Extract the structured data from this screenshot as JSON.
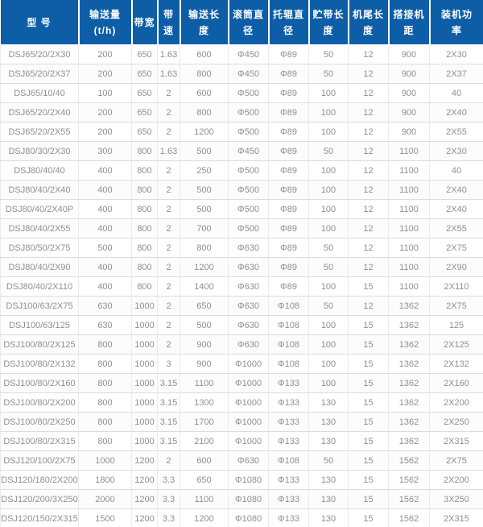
{
  "table": {
    "columns": [
      {
        "key": "model",
        "lines": [
          "型 号"
        ]
      },
      {
        "key": "capacity",
        "lines": [
          "输送量",
          "(t/h)"
        ]
      },
      {
        "key": "belt-width",
        "lines": [
          "带宽"
        ]
      },
      {
        "key": "belt-speed",
        "lines": [
          "带",
          "速"
        ]
      },
      {
        "key": "convey-length",
        "lines": [
          "输送长",
          "度"
        ]
      },
      {
        "key": "drum-diameter",
        "lines": [
          "滚筒直",
          "径"
        ]
      },
      {
        "key": "idler-diameter",
        "lines": [
          "托辊直",
          "径"
        ]
      },
      {
        "key": "storage-length",
        "lines": [
          "贮带长",
          "度"
        ]
      },
      {
        "key": "tail-length",
        "lines": [
          "机尾长",
          "度"
        ]
      },
      {
        "key": "overlap-distance",
        "lines": [
          "搭接机",
          "距"
        ]
      },
      {
        "key": "power",
        "lines": [
          "装机功",
          "率"
        ]
      }
    ],
    "rows": [
      {
        "cells": [
          "DSJ65/20/2X30",
          "200",
          "650",
          "1.63",
          "600",
          "Φ450",
          "Φ89",
          "50",
          "12",
          "900",
          "2X30"
        ]
      },
      {
        "cells": [
          "DSJ65/20/2X37",
          "200",
          "650",
          "1.63",
          "800",
          "Φ450",
          "Φ89",
          "50",
          "12",
          "900",
          "2X37"
        ]
      },
      {
        "cells": [
          "DSJ65/10/40",
          "100",
          "650",
          "2",
          "600",
          "Φ500",
          "Φ89",
          "100",
          "12",
          "900",
          "40"
        ]
      },
      {
        "cells": [
          "DSJ65/20/2X40",
          "200",
          "650",
          "2",
          "800",
          "Φ500",
          "Φ89",
          "100",
          "12",
          "900",
          "2X40"
        ]
      },
      {
        "cells": [
          "DSJ65/20/2X55",
          "200",
          "650",
          "2",
          "1200",
          "Φ500",
          "Φ89",
          "100",
          "12",
          "900",
          "2X55"
        ]
      },
      {
        "cells": [
          "DSJ80/30/2X30",
          "300",
          "800",
          "1.63",
          "500",
          "Φ450",
          "Φ89",
          "50",
          "12",
          "1100",
          "2X30"
        ]
      },
      {
        "cells": [
          "DSJ80/40/40",
          "400",
          "800",
          "2",
          "250",
          "Φ500",
          "Φ89",
          "100",
          "12",
          "1100",
          "40"
        ]
      },
      {
        "cells": [
          "DSJ80/40/2X40",
          "400",
          "800",
          "2",
          "500",
          "Φ500",
          "Φ89",
          "100",
          "12",
          "1100",
          "2X40"
        ]
      },
      {
        "cells": [
          "DSJ80/40/2X40P",
          "400",
          "800",
          "2",
          "500",
          "Φ500",
          "Φ89",
          "100",
          "12",
          "1100",
          "2X40"
        ]
      },
      {
        "cells": [
          "DSJ80/40/2X55",
          "400",
          "800",
          "2",
          "700",
          "Φ500",
          "Φ89",
          "100",
          "12",
          "1100",
          "2X55"
        ]
      },
      {
        "cells": [
          "DSJ80/50/2X75",
          "500",
          "800",
          "2",
          "800",
          "Φ630",
          "Φ89",
          "50",
          "12",
          "1100",
          "2X75"
        ]
      },
      {
        "cells": [
          "DSJ80/40/2X90",
          "400",
          "800",
          "2",
          "1200",
          "Φ630",
          "Φ89",
          "50",
          "12",
          "1100",
          "2X90"
        ]
      },
      {
        "cells": [
          "DSJ80/40/2X110",
          "400",
          "800",
          "2",
          "1400",
          "Φ630",
          "Φ89",
          "100",
          "15",
          "1100",
          "2X110"
        ]
      },
      {
        "cells": [
          "DSJ100/63/2X75",
          "630",
          "1000",
          "2",
          "650",
          "Φ630",
          "Φ108",
          "50",
          "12",
          "1362",
          "2X75"
        ]
      },
      {
        "cells": [
          "DSJ100/63/125",
          "630",
          "1000",
          "2",
          "500",
          "Φ630",
          "Φ108",
          "100",
          "15",
          "1362",
          "125"
        ]
      },
      {
        "cells": [
          "DSJ100/80/2X125",
          "800",
          "1000",
          "2",
          "900",
          "Φ630",
          "Φ108",
          "100",
          "15",
          "1362",
          "2X125"
        ]
      },
      {
        "cells": [
          "DSJ100/80/2X132",
          "800",
          "1000",
          "3",
          "900",
          "Φ1000",
          "Φ108",
          "100",
          "15",
          "1362",
          "2X132"
        ]
      },
      {
        "cells": [
          "DSJ100/80/2X160",
          "800",
          "1000",
          "3.15",
          "1100",
          "Φ1000",
          "Φ133",
          "100",
          "15",
          "1362",
          "2X160"
        ]
      },
      {
        "cells": [
          "DSJ100/80/2X200",
          "800",
          "1000",
          "3.15",
          "1300",
          "Φ1000",
          "Φ133",
          "130",
          "15",
          "1362",
          "2X200"
        ]
      },
      {
        "cells": [
          "DSJ100/80/2X250",
          "800",
          "1000",
          "3.15",
          "1700",
          "Φ1000",
          "Φ133",
          "130",
          "15",
          "1362",
          "2X250"
        ]
      },
      {
        "cells": [
          "DSJ100/80/2X315",
          "800",
          "1000",
          "3.15",
          "2100",
          "Φ1000",
          "Φ133",
          "130",
          "15",
          "1362",
          "2X315"
        ]
      },
      {
        "cells": [
          "DSJ120/100/2X75",
          "1000",
          "1200",
          "2",
          "600",
          "Φ630",
          "Φ108",
          "50",
          "15",
          "1562",
          "2X75"
        ]
      },
      {
        "cells": [
          "DSJ120/180/2X200",
          "1800",
          "1200",
          "3.3",
          "650",
          "Φ1080",
          "Φ133",
          "130",
          "15",
          "1562",
          "2X200"
        ]
      },
      {
        "cells": [
          "DSJ120/200/3X250",
          "2000",
          "1200",
          "3.3",
          "1100",
          "Φ1080",
          "Φ133",
          "130",
          "15",
          "1562",
          "3X250"
        ]
      },
      {
        "cells": [
          "DSJ120/150/2X315",
          "1500",
          "1200",
          "3.3",
          "1200",
          "Φ1080",
          "Φ133",
          "130",
          "15",
          "1562",
          "2X315"
        ]
      }
    ]
  },
  "colors": {
    "header_bg": "#0d5ea7",
    "header_text": "#ffffff",
    "cell_text": "#8f8f8f"
  }
}
